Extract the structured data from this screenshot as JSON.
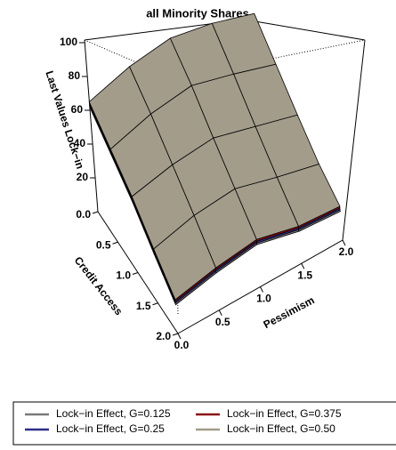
{
  "chart_data": {
    "type": "surface",
    "title": "all Minority Shares",
    "xlabel": "Credit Access",
    "ylabel": "Pessimism",
    "zlabel": "Last Values Lock−in",
    "x": [
      0,
      0.5,
      1,
      1.5,
      2
    ],
    "y": [
      0,
      0.5,
      1,
      1.5,
      2
    ],
    "xlim": [
      0,
      2
    ],
    "ylim": [
      0,
      2
    ],
    "zlim": [
      0,
      100
    ],
    "xticks": [
      {
        "value": 0,
        "label": "0.0"
      },
      0.5,
      {
        "value": 1,
        "label": "1.0"
      },
      1.5,
      {
        "value": 2,
        "label": "2.0"
      }
    ],
    "yticks": [
      {
        "value": 0,
        "label": "0.0"
      },
      0.5,
      {
        "value": 1,
        "label": "1.0"
      },
      1.5,
      {
        "value": 2,
        "label": "2.0"
      }
    ],
    "zticks": [
      20,
      40,
      60,
      80,
      100
    ],
    "series": [
      {
        "name": "Lock−in Effect, G=0.125",
        "color": "#7a7a7a",
        "z": [
          [
            62,
            69,
            72,
            67,
            59
          ],
          [
            52,
            59,
            62,
            55,
            47
          ],
          [
            42,
            47,
            49,
            42,
            35
          ],
          [
            29,
            35,
            37,
            30,
            24
          ],
          [
            17,
            22,
            25,
            19,
            17
          ]
        ]
      },
      {
        "name": "Lock−in Effect, G=0.25",
        "color": "#2e2e8a",
        "z": [
          [
            63,
            70,
            73,
            68,
            60
          ],
          [
            53,
            60,
            63,
            56,
            48
          ],
          [
            43,
            48,
            50,
            43,
            36
          ],
          [
            30,
            36,
            38,
            31,
            25
          ],
          [
            18,
            23,
            26,
            20,
            18
          ]
        ]
      },
      {
        "name": "Lock−in Effect, G=0.375",
        "color": "#8b1010",
        "z": [
          [
            64,
            71,
            74,
            69,
            61
          ],
          [
            54,
            61,
            64,
            57,
            49
          ],
          [
            44,
            49,
            51,
            44,
            37
          ],
          [
            31,
            37,
            39,
            32,
            26
          ],
          [
            19,
            24,
            27,
            21,
            19
          ]
        ]
      },
      {
        "name": "Lock−in Effect, G=0.50",
        "color": "#a39c8b",
        "z": [
          [
            65,
            72,
            75,
            70,
            62
          ],
          [
            55,
            62,
            65,
            58,
            50
          ],
          [
            45,
            50,
            52,
            45,
            38
          ],
          [
            32,
            38,
            40,
            33,
            27
          ],
          [
            20,
            25,
            28,
            22,
            20
          ]
        ]
      }
    ]
  }
}
